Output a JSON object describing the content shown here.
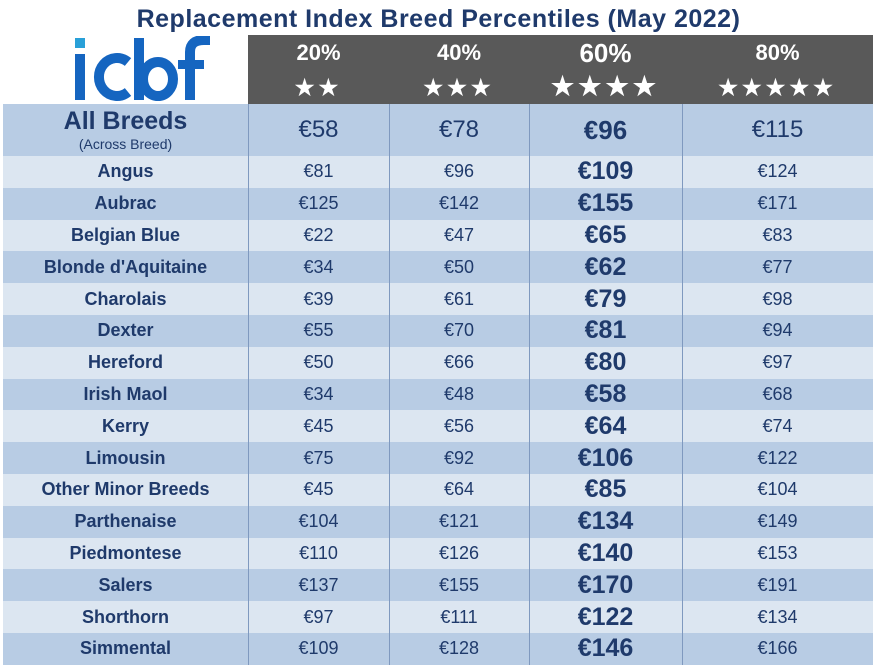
{
  "title": "Replacement Index Breed Percentiles (May 2022)",
  "logo": {
    "text": "icbf",
    "color": "#1565c0",
    "accent": "#29a0d8"
  },
  "colors": {
    "header_bg": "#595959",
    "row_dark": "#b8cce4",
    "row_light": "#dce6f1",
    "text": "#1f3a6b"
  },
  "chart_data": {
    "type": "table",
    "title": "Replacement Index Breed Percentiles (May 2022)",
    "columns": [
      {
        "label": "20%",
        "stars": "★★"
      },
      {
        "label": "40%",
        "stars": "★★★"
      },
      {
        "label": "60%",
        "stars": "★★★★"
      },
      {
        "label": "80%",
        "stars": "★★★★★"
      }
    ],
    "highlight_column": 2,
    "rows": [
      {
        "name": "All Breeds",
        "sub": "(Across Breed)",
        "values": [
          "€58",
          "€78",
          "€96",
          "€115"
        ]
      },
      {
        "name": "Angus",
        "values": [
          "€81",
          "€96",
          "€109",
          "€124"
        ]
      },
      {
        "name": "Aubrac",
        "values": [
          "€125",
          "€142",
          "€155",
          "€171"
        ]
      },
      {
        "name": "Belgian Blue",
        "values": [
          "€22",
          "€47",
          "€65",
          "€83"
        ]
      },
      {
        "name": "Blonde d'Aquitaine",
        "values": [
          "€34",
          "€50",
          "€62",
          "€77"
        ]
      },
      {
        "name": "Charolais",
        "values": [
          "€39",
          "€61",
          "€79",
          "€98"
        ]
      },
      {
        "name": "Dexter",
        "values": [
          "€55",
          "€70",
          "€81",
          "€94"
        ]
      },
      {
        "name": "Hereford",
        "values": [
          "€50",
          "€66",
          "€80",
          "€97"
        ]
      },
      {
        "name": "Irish Maol",
        "values": [
          "€34",
          "€48",
          "€58",
          "€68"
        ]
      },
      {
        "name": "Kerry",
        "values": [
          "€45",
          "€56",
          "€64",
          "€74"
        ]
      },
      {
        "name": "Limousin",
        "values": [
          "€75",
          "€92",
          "€106",
          "€122"
        ]
      },
      {
        "name": "Other Minor Breeds",
        "values": [
          "€45",
          "€64",
          "€85",
          "€104"
        ]
      },
      {
        "name": "Parthenaise",
        "values": [
          "€104",
          "€121",
          "€134",
          "€149"
        ]
      },
      {
        "name": "Piedmontese",
        "values": [
          "€110",
          "€126",
          "€140",
          "€153"
        ]
      },
      {
        "name": "Salers",
        "values": [
          "€137",
          "€155",
          "€170",
          "€191"
        ]
      },
      {
        "name": "Shorthorn",
        "values": [
          "€97",
          "€111",
          "€122",
          "€134"
        ]
      },
      {
        "name": "Simmental",
        "values": [
          "€109",
          "€128",
          "€146",
          "€166"
        ]
      }
    ]
  }
}
